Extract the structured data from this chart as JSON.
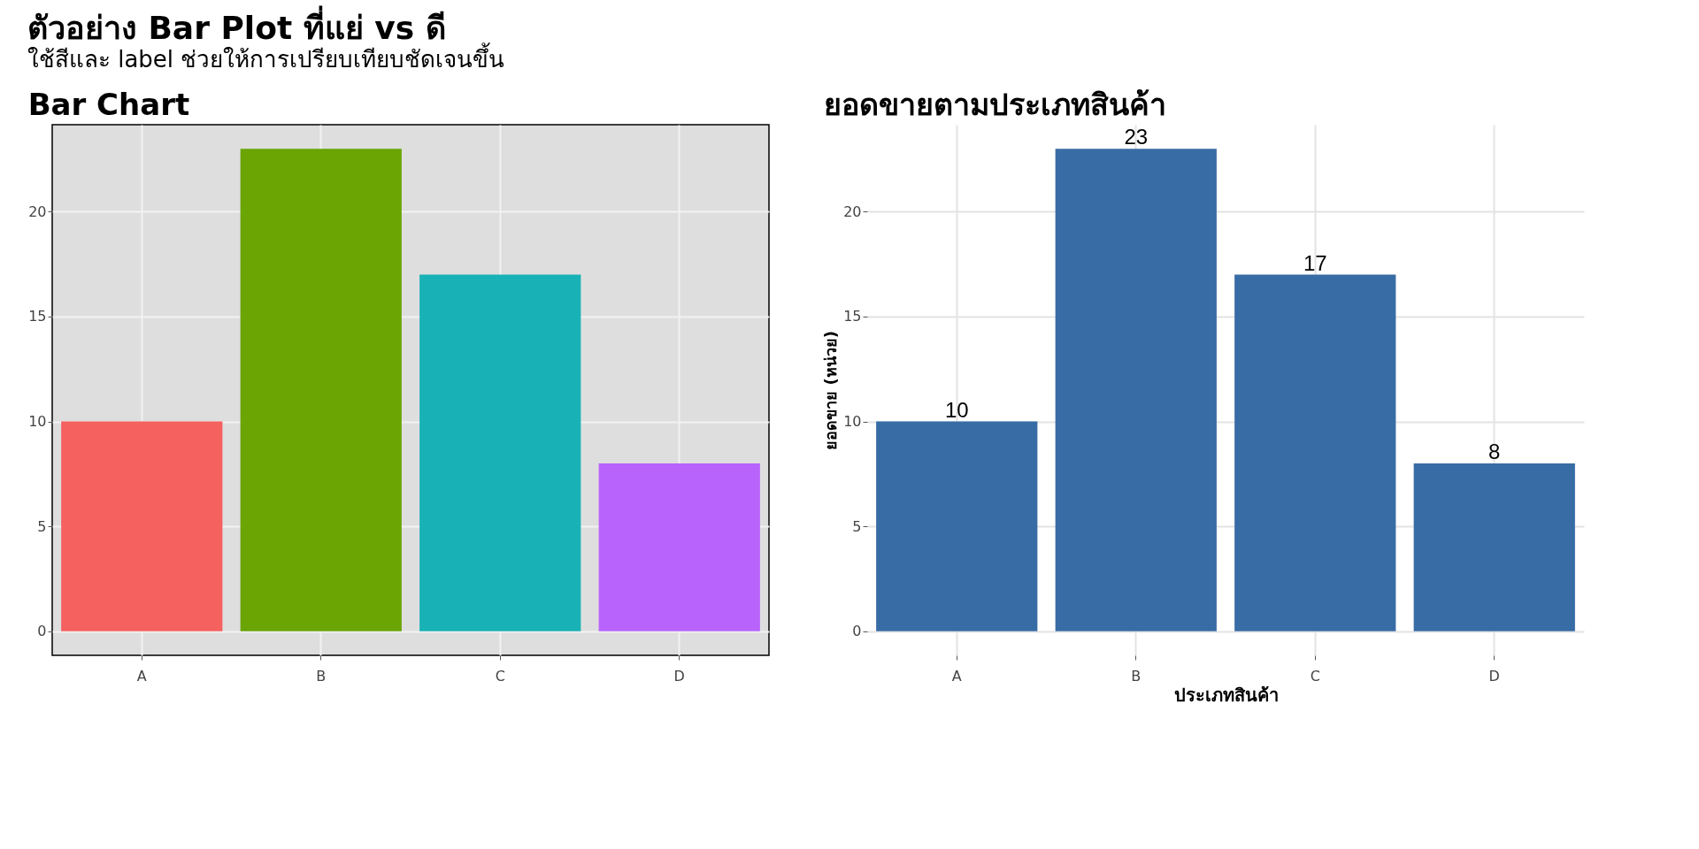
{
  "chart_data": [
    {
      "type": "bar",
      "title": "Bar Chart",
      "annotations": [
        "ตัวอย่าง Bar Plot ที่แย่ vs ดี",
        "ใช้สีและ label ช่วยให้การเปรียบเทียบชัดเจนขึ้น"
      ],
      "categories": [
        "A",
        "B",
        "C",
        "D"
      ],
      "values": [
        10,
        23,
        17,
        8
      ],
      "colors": [
        "#f4615f",
        "#6aa504",
        "#18b2b6",
        "#b963fd"
      ],
      "ylim": [
        -1.15,
        24.15
      ],
      "yticks": [
        0,
        5,
        10,
        15,
        20
      ],
      "grid": true
    },
    {
      "type": "bar",
      "title": "ยอดขายตามประเภทสินค้า",
      "xlabel": "ประเภทสินค้า",
      "ylabel": "ยอดขาย (หน่วย)",
      "categories": [
        "A",
        "B",
        "C",
        "D"
      ],
      "values": [
        10,
        23,
        17,
        8
      ],
      "color": "#386ca5",
      "ylim": [
        -1.15,
        24.15
      ],
      "yticks": [
        0,
        5,
        10,
        15,
        20
      ],
      "grid": true,
      "data_labels": true
    }
  ]
}
